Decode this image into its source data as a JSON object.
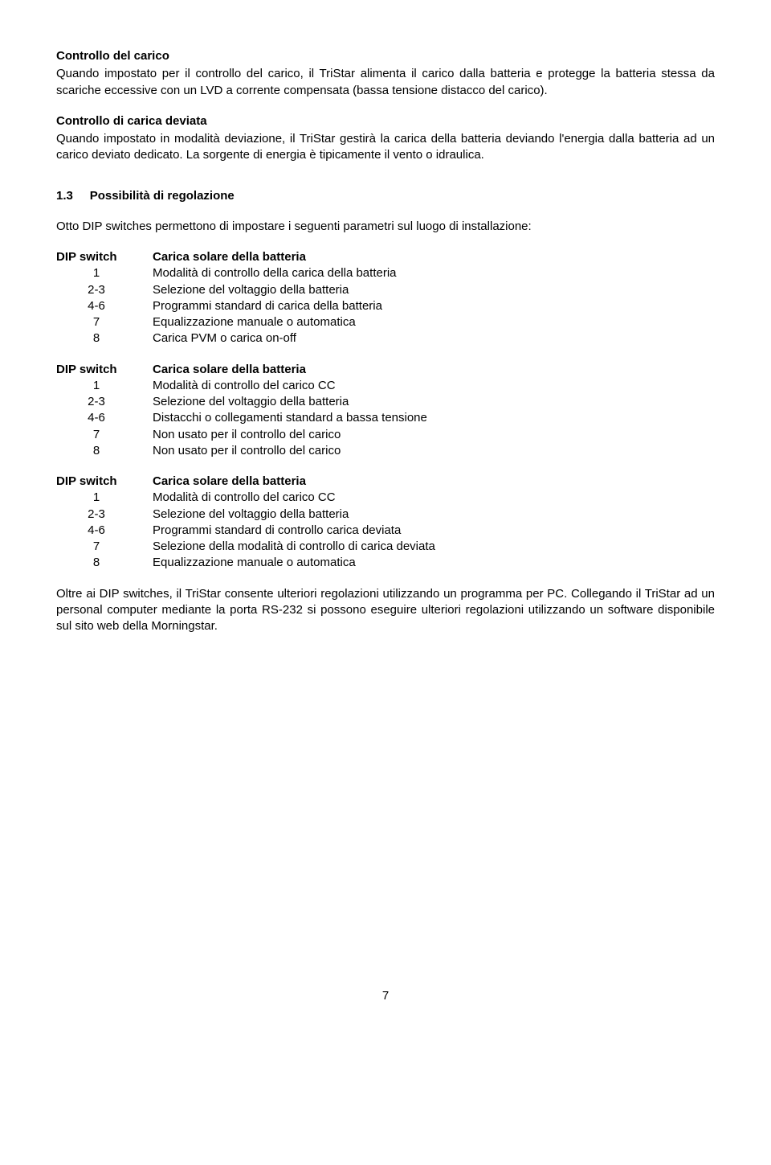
{
  "sec1": {
    "title": "Controllo del carico",
    "body": "Quando impostato per il controllo del carico, il TriStar alimenta il carico dalla batteria e protegge la batteria stessa da scariche eccessive con un LVD a corrente compensata (bassa tensione distacco del carico)."
  },
  "sec2": {
    "title": "Controllo di carica deviata",
    "body": "Quando impostato in modalità deviazione, il TriStar gestirà la carica della batteria deviando l'energia dalla batteria ad un carico deviato dedicato. La sorgente di energia è tipicamente il vento o idraulica."
  },
  "subsec": {
    "num": "1.3",
    "title": "Possibilità di regolazione"
  },
  "intro": "Otto DIP switches permettono di impostare i seguenti parametri sul luogo di installazione:",
  "blocks": [
    {
      "header_left": "DIP switch",
      "header_right": "Carica solare della batteria",
      "rows": [
        {
          "k": "1",
          "v": "Modalità di controllo della carica della batteria"
        },
        {
          "k": "2-3",
          "v": "Selezione del voltaggio della batteria"
        },
        {
          "k": "4-6",
          "v": "Programmi standard di carica della batteria"
        },
        {
          "k": "7",
          "v": "Equalizzazione manuale o automatica"
        },
        {
          "k": "8",
          "v": "Carica PVM o carica on-off"
        }
      ]
    },
    {
      "header_left": "DIP switch",
      "header_right": "Carica solare della batteria",
      "rows": [
        {
          "k": "1",
          "v": "Modalità di controllo del carico CC"
        },
        {
          "k": "2-3",
          "v": "Selezione del voltaggio della batteria"
        },
        {
          "k": "4-6",
          "v": "Distacchi o collegamenti standard a bassa tensione"
        },
        {
          "k": "7",
          "v": "Non usato per il controllo del carico"
        },
        {
          "k": "8",
          "v": "Non usato per il controllo del carico"
        }
      ]
    },
    {
      "header_left": "DIP switch",
      "header_right": "Carica solare della batteria",
      "rows": [
        {
          "k": "1",
          "v": "Modalità di controllo del carico CC"
        },
        {
          "k": "2-3",
          "v": "Selezione del voltaggio della batteria"
        },
        {
          "k": "4-6",
          "v": "Programmi standard di controllo carica deviata"
        },
        {
          "k": "7",
          "v": "Selezione della modalità di controllo di carica deviata"
        },
        {
          "k": "8",
          "v": "Equalizzazione manuale o automatica"
        }
      ]
    }
  ],
  "closing": "Oltre ai DIP switches, il TriStar consente ulteriori regolazioni utilizzando un programma per PC. Collegando il TriStar ad un personal computer mediante la porta RS-232 si possono eseguire ulteriori regolazioni utilizzando un software disponibile sul sito web della Morningstar.",
  "page_number": "7"
}
